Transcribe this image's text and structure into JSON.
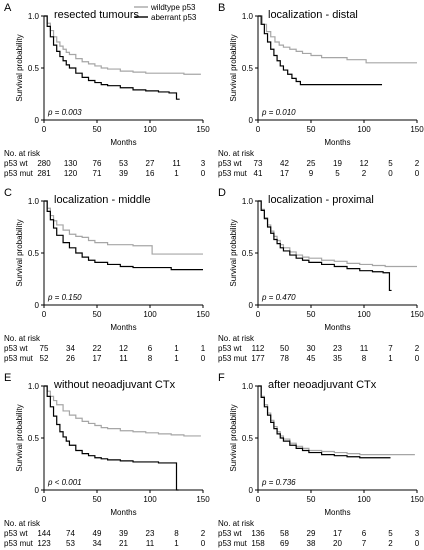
{
  "figure": {
    "colors": {
      "wildtype": "#a6a6a6",
      "aberrant": "#000000",
      "axis": "#000000"
    },
    "legend": {
      "placement": "top-right"
    }
  },
  "chart_data": [
    {
      "panel": "A",
      "type": "line",
      "title": "resected tumours",
      "xlabel": "Months",
      "ylabel": "Survival probability",
      "xlim": [
        0,
        150
      ],
      "ylim": [
        0,
        1
      ],
      "xticks": [
        0,
        50,
        100,
        150
      ],
      "yticks": [
        0,
        0.5,
        1
      ],
      "ytick_labels": [
        "0",
        "0.5",
        "1.0"
      ],
      "pvalue": "p = 0.003",
      "legend": [
        "wildtype p53",
        "aberrant p53"
      ],
      "series": [
        {
          "name": "wildtype p53",
          "x": [
            0,
            3,
            6,
            9,
            12,
            15,
            18,
            21,
            24,
            30,
            36,
            42,
            48,
            54,
            60,
            72,
            84,
            96,
            108,
            120,
            132,
            142,
            148
          ],
          "y": [
            1.0,
            0.93,
            0.86,
            0.8,
            0.75,
            0.71,
            0.68,
            0.65,
            0.63,
            0.59,
            0.56,
            0.54,
            0.52,
            0.5,
            0.49,
            0.47,
            0.46,
            0.45,
            0.45,
            0.45,
            0.44,
            0.44,
            0.44
          ]
        },
        {
          "name": "aberrant p53",
          "x": [
            0,
            3,
            6,
            9,
            12,
            15,
            18,
            21,
            24,
            30,
            36,
            42,
            48,
            54,
            60,
            72,
            84,
            96,
            108,
            118,
            125,
            125,
            128
          ],
          "y": [
            1.0,
            0.9,
            0.8,
            0.72,
            0.66,
            0.61,
            0.57,
            0.53,
            0.5,
            0.45,
            0.41,
            0.38,
            0.36,
            0.34,
            0.33,
            0.31,
            0.29,
            0.28,
            0.27,
            0.26,
            0.26,
            0.2,
            0.2
          ]
        }
      ],
      "risk_table": {
        "header": "No. at risk",
        "rows": [
          {
            "label": "p53 wt",
            "values": [
              "280",
              "130",
              "76",
              "53",
              "27",
              "11",
              "3"
            ]
          },
          {
            "label": "p53 mut",
            "values": [
              "281",
              "120",
              "71",
              "39",
              "16",
              "1",
              "0"
            ]
          }
        ]
      }
    },
    {
      "panel": "B",
      "type": "line",
      "title": "localization - distal",
      "xlabel": "Months",
      "ylabel": "Survival probability",
      "xlim": [
        0,
        150
      ],
      "ylim": [
        0,
        1
      ],
      "xticks": [
        0,
        50,
        100,
        150
      ],
      "yticks": [
        0,
        0.5,
        1
      ],
      "ytick_labels": [
        "0",
        "0.5",
        "1.0"
      ],
      "pvalue": "p = 0.010",
      "series": [
        {
          "name": "wildtype p53",
          "x": [
            0,
            4,
            8,
            12,
            16,
            20,
            24,
            30,
            36,
            42,
            50,
            60,
            72,
            84,
            96,
            102,
            110,
            120,
            150
          ],
          "y": [
            1.0,
            0.92,
            0.85,
            0.8,
            0.75,
            0.72,
            0.7,
            0.68,
            0.66,
            0.64,
            0.62,
            0.6,
            0.6,
            0.58,
            0.58,
            0.55,
            0.55,
            0.55,
            0.55
          ]
        },
        {
          "name": "aberrant p53",
          "x": [
            0,
            3,
            6,
            9,
            12,
            15,
            18,
            21,
            24,
            28,
            32,
            36,
            40,
            44,
            50,
            60,
            80,
            100,
            117
          ],
          "y": [
            1.0,
            0.92,
            0.83,
            0.75,
            0.68,
            0.62,
            0.57,
            0.52,
            0.48,
            0.44,
            0.4,
            0.37,
            0.34,
            0.34,
            0.34,
            0.34,
            0.34,
            0.34,
            0.34
          ]
        }
      ],
      "risk_table": {
        "header": "No. at risk",
        "rows": [
          {
            "label": "p53 wt",
            "values": [
              "73",
              "42",
              "25",
              "19",
              "12",
              "5",
              "2"
            ]
          },
          {
            "label": "p53 mut",
            "values": [
              "41",
              "17",
              "9",
              "5",
              "2",
              "0",
              "0"
            ]
          }
        ]
      }
    },
    {
      "panel": "C",
      "type": "line",
      "title": "localization - middle",
      "xlabel": "Months",
      "ylabel": "Survival probability",
      "xlim": [
        0,
        150
      ],
      "ylim": [
        0,
        1
      ],
      "xticks": [
        0,
        50,
        100,
        150
      ],
      "yticks": [
        0,
        0.5,
        1
      ],
      "ytick_labels": [
        "0",
        "0.5",
        "1.0"
      ],
      "pvalue": "p = 0.150",
      "series": [
        {
          "name": "wildtype p53",
          "x": [
            0,
            3,
            6,
            9,
            12,
            18,
            24,
            30,
            36,
            42,
            48,
            60,
            72,
            84,
            96,
            102,
            102,
            150
          ],
          "y": [
            1.0,
            0.93,
            0.86,
            0.81,
            0.77,
            0.72,
            0.68,
            0.66,
            0.65,
            0.62,
            0.6,
            0.58,
            0.58,
            0.57,
            0.57,
            0.57,
            0.49,
            0.49
          ]
        },
        {
          "name": "aberrant p53",
          "x": [
            0,
            3,
            6,
            9,
            12,
            18,
            24,
            30,
            36,
            42,
            48,
            60,
            72,
            84,
            96,
            108,
            120,
            150
          ],
          "y": [
            1.0,
            0.9,
            0.82,
            0.74,
            0.67,
            0.6,
            0.55,
            0.5,
            0.46,
            0.43,
            0.41,
            0.39,
            0.37,
            0.36,
            0.36,
            0.36,
            0.34,
            0.34
          ]
        }
      ],
      "risk_table": {
        "header": "No. at risk",
        "rows": [
          {
            "label": "p53 wt",
            "values": [
              "75",
              "34",
              "22",
              "12",
              "6",
              "1",
              "1"
            ]
          },
          {
            "label": "p53 mut",
            "values": [
              "52",
              "26",
              "17",
              "11",
              "8",
              "1",
              "0"
            ]
          }
        ]
      }
    },
    {
      "panel": "D",
      "type": "line",
      "title": "localization - proximal",
      "xlabel": "Months",
      "ylabel": "Survival probability",
      "xlim": [
        0,
        150
      ],
      "ylim": [
        0,
        1
      ],
      "xticks": [
        0,
        50,
        100,
        150
      ],
      "yticks": [
        0,
        0.5,
        1
      ],
      "ytick_labels": [
        "0",
        "0.5",
        "1.0"
      ],
      "pvalue": "p = 0.470",
      "series": [
        {
          "name": "wildtype p53",
          "x": [
            0,
            3,
            6,
            9,
            12,
            15,
            18,
            21,
            24,
            30,
            36,
            42,
            48,
            60,
            72,
            84,
            96,
            108,
            120,
            132,
            150
          ],
          "y": [
            1.0,
            0.92,
            0.84,
            0.77,
            0.71,
            0.66,
            0.62,
            0.58,
            0.55,
            0.51,
            0.48,
            0.46,
            0.45,
            0.43,
            0.42,
            0.4,
            0.39,
            0.38,
            0.37,
            0.37,
            0.37
          ]
        },
        {
          "name": "aberrant p53",
          "x": [
            0,
            3,
            6,
            9,
            12,
            15,
            18,
            21,
            24,
            30,
            36,
            42,
            48,
            60,
            72,
            84,
            96,
            108,
            118,
            124,
            124,
            126
          ],
          "y": [
            1.0,
            0.91,
            0.83,
            0.75,
            0.69,
            0.63,
            0.59,
            0.55,
            0.52,
            0.48,
            0.45,
            0.43,
            0.41,
            0.39,
            0.37,
            0.35,
            0.33,
            0.32,
            0.31,
            0.31,
            0.14,
            0.14
          ]
        }
      ],
      "risk_table": {
        "header": "No. at risk",
        "rows": [
          {
            "label": "p53 wt",
            "values": [
              "112",
              "50",
              "30",
              "23",
              "11",
              "7",
              "2"
            ]
          },
          {
            "label": "p53 mut",
            "values": [
              "177",
              "78",
              "45",
              "35",
              "8",
              "1",
              "0"
            ]
          }
        ]
      }
    },
    {
      "panel": "E",
      "type": "line",
      "title": "without neoadjuvant CTx",
      "xlabel": "Months",
      "ylabel": "Survival probability",
      "xlim": [
        0,
        150
      ],
      "ylim": [
        0,
        1
      ],
      "xticks": [
        0,
        50,
        100,
        150
      ],
      "yticks": [
        0,
        0.5,
        1
      ],
      "ytick_labels": [
        "0",
        "0.5",
        "1.0"
      ],
      "pvalue": "p < 0.001",
      "series": [
        {
          "name": "wildtype p53",
          "x": [
            0,
            3,
            6,
            9,
            12,
            18,
            24,
            30,
            36,
            42,
            48,
            54,
            60,
            72,
            84,
            96,
            108,
            120,
            132,
            148
          ],
          "y": [
            1.0,
            0.95,
            0.9,
            0.86,
            0.82,
            0.76,
            0.72,
            0.69,
            0.66,
            0.64,
            0.62,
            0.6,
            0.59,
            0.57,
            0.56,
            0.55,
            0.54,
            0.53,
            0.52,
            0.52
          ]
        },
        {
          "name": "aberrant p53",
          "x": [
            0,
            3,
            6,
            9,
            12,
            15,
            18,
            21,
            24,
            30,
            36,
            42,
            48,
            54,
            60,
            72,
            84,
            96,
            108,
            120,
            125,
            125,
            127
          ],
          "y": [
            1.0,
            0.9,
            0.8,
            0.71,
            0.63,
            0.56,
            0.51,
            0.47,
            0.43,
            0.38,
            0.35,
            0.33,
            0.31,
            0.3,
            0.29,
            0.28,
            0.27,
            0.27,
            0.26,
            0.26,
            0.26,
            0.0,
            0.0
          ]
        }
      ],
      "risk_table": {
        "header": "No. at risk",
        "rows": [
          {
            "label": "p53 wt",
            "values": [
              "144",
              "74",
              "49",
              "39",
              "23",
              "8",
              "2"
            ]
          },
          {
            "label": "p53 mut",
            "values": [
              "123",
              "53",
              "34",
              "21",
              "11",
              "1",
              "0"
            ]
          }
        ]
      }
    },
    {
      "panel": "F",
      "type": "line",
      "title": "after neoadjuvant CTx",
      "xlabel": "Months",
      "ylabel": "Survival probability",
      "xlim": [
        0,
        150
      ],
      "ylim": [
        0,
        1
      ],
      "xticks": [
        0,
        50,
        100,
        150
      ],
      "yticks": [
        0,
        0.5,
        1
      ],
      "ytick_labels": [
        "0",
        "0.5",
        "1.0"
      ],
      "pvalue": "p = 0.736",
      "series": [
        {
          "name": "wildtype p53",
          "x": [
            0,
            3,
            6,
            9,
            12,
            15,
            18,
            21,
            24,
            30,
            36,
            42,
            48,
            60,
            72,
            84,
            96,
            108,
            120,
            132,
            148
          ],
          "y": [
            1.0,
            0.9,
            0.82,
            0.74,
            0.67,
            0.61,
            0.56,
            0.52,
            0.49,
            0.45,
            0.42,
            0.4,
            0.38,
            0.37,
            0.36,
            0.35,
            0.34,
            0.34,
            0.34,
            0.34,
            0.34
          ]
        },
        {
          "name": "aberrant p53",
          "x": [
            0,
            3,
            6,
            9,
            12,
            15,
            18,
            21,
            24,
            30,
            36,
            42,
            48,
            60,
            72,
            84,
            96,
            108,
            120,
            125
          ],
          "y": [
            1.0,
            0.89,
            0.8,
            0.72,
            0.65,
            0.59,
            0.54,
            0.5,
            0.47,
            0.43,
            0.4,
            0.38,
            0.36,
            0.34,
            0.33,
            0.32,
            0.31,
            0.31,
            0.31,
            0.31
          ]
        }
      ],
      "risk_table": {
        "header": "No. at risk",
        "rows": [
          {
            "label": "p53 wt",
            "values": [
              "136",
              "58",
              "29",
              "17",
              "6",
              "5",
              "3"
            ]
          },
          {
            "label": "p53 mut",
            "values": [
              "158",
              "69",
              "38",
              "20",
              "7",
              "2",
              "0"
            ]
          }
        ]
      }
    }
  ]
}
